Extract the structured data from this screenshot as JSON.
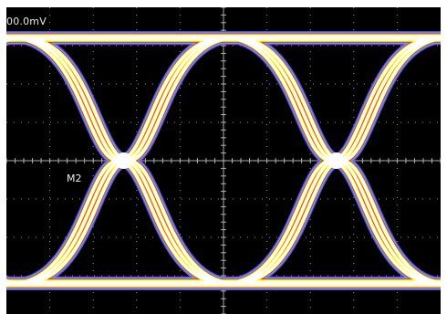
{
  "scope": {
    "scale_label": "00.0mV",
    "marker_label": "M2"
  },
  "chart_data": {
    "type": "line",
    "title": "",
    "xlabel": "",
    "ylabel": "",
    "grid": true,
    "grid_divisions": {
      "x": 10,
      "y": 8
    },
    "xlim": [
      0,
      10
    ],
    "ylim": [
      -4,
      4
    ],
    "unit_interval_div": 4.9,
    "crossings_div": [
      2.7,
      7.6
    ],
    "series": [
      {
        "values": [
          3.2,
          3.2
        ]
      },
      {
        "values": [
          -3.2,
          -3.2
        ]
      }
    ],
    "colors": {
      "core": "#ffffff",
      "high_density": "#ffff00",
      "mid_density": "#ff1a5a",
      "low_density": "#22c8e0",
      "outer": "#8a40ff",
      "grid": "#c8c8c8",
      "background": "#000000"
    }
  }
}
